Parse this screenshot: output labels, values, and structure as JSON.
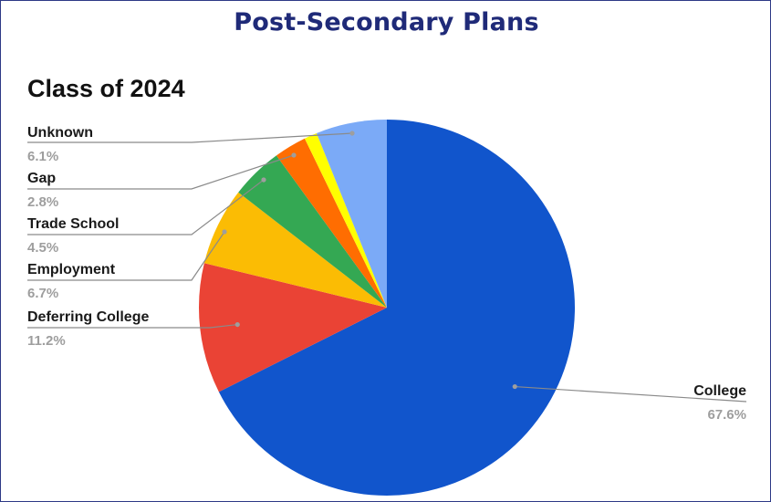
{
  "header": {
    "title": "Post-Secondary Plans"
  },
  "chart_data": {
    "type": "pie",
    "title": "Class of 2024",
    "slices": [
      {
        "label": "College",
        "value": 67.6,
        "value_label": "67.6%",
        "color": "#1155cc"
      },
      {
        "label": "Deferring College",
        "value": 11.2,
        "value_label": "11.2%",
        "color": "#ea4335"
      },
      {
        "label": "Employment",
        "value": 6.7,
        "value_label": "6.7%",
        "color": "#fbbc04"
      },
      {
        "label": "Trade School",
        "value": 4.5,
        "value_label": "4.5%",
        "color": "#34a853"
      },
      {
        "label": "Gap",
        "value": 2.8,
        "value_label": "2.8%",
        "color": "#ff6d01"
      },
      {
        "label": "",
        "value": 1.1,
        "value_label": "",
        "color": "#ffff00"
      },
      {
        "label": "Unknown",
        "value": 6.1,
        "value_label": "6.1%",
        "color": "#7baaf7"
      }
    ],
    "legend": "leader-line labels"
  }
}
